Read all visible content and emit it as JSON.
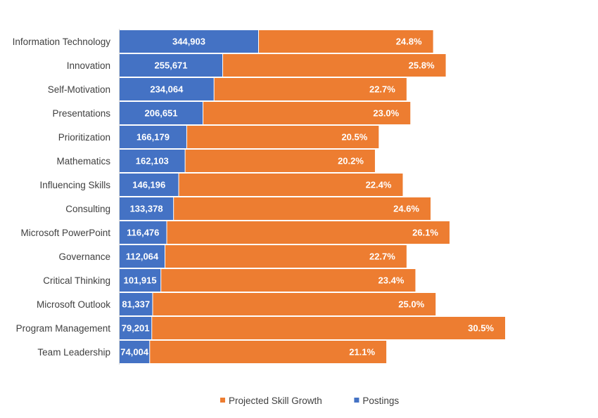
{
  "chart_data": {
    "type": "bar",
    "orientation": "horizontal",
    "stacked": true,
    "title": "",
    "categories": [
      "Information Technology",
      "Innovation",
      "Self-Motivation",
      "Presentations",
      "Prioritization",
      "Mathematics",
      "Influencing Skills",
      "Consulting",
      "Microsoft PowerPoint",
      "Governance",
      "Critical Thinking",
      "Microsoft Outlook",
      "Program Management",
      "Team Leadership"
    ],
    "series": [
      {
        "name": "Postings",
        "color": "#4472C4",
        "values": [
          344903,
          255671,
          234064,
          206651,
          166179,
          162103,
          146196,
          133378,
          116476,
          112064,
          101915,
          81337,
          79201,
          74004
        ],
        "labels": [
          "344,903",
          "255,671",
          "234,064",
          "206,651",
          "166,179",
          "162,103",
          "146,196",
          "133,378",
          "116,476",
          "112,064",
          "101,915",
          "81,337",
          "79,201",
          "74,004"
        ]
      },
      {
        "name": "Projected Skill Growth",
        "color": "#ED7D31",
        "values": [
          24.8,
          25.8,
          22.7,
          23.0,
          20.5,
          20.2,
          22.4,
          24.6,
          26.1,
          22.7,
          23.4,
          25.0,
          30.5,
          21.1
        ],
        "labels": [
          "24.8%",
          "25.8%",
          "22.7%",
          "23.0%",
          "20.5%",
          "20.2%",
          "22.4%",
          "24.6%",
          "26.1%",
          "22.7%",
          "23.4%",
          "25.0%",
          "30.5%",
          "21.1%"
        ]
      }
    ],
    "legend": {
      "position": "bottom",
      "items": [
        "Projected Skill Growth",
        "Postings"
      ]
    },
    "grid": false
  }
}
